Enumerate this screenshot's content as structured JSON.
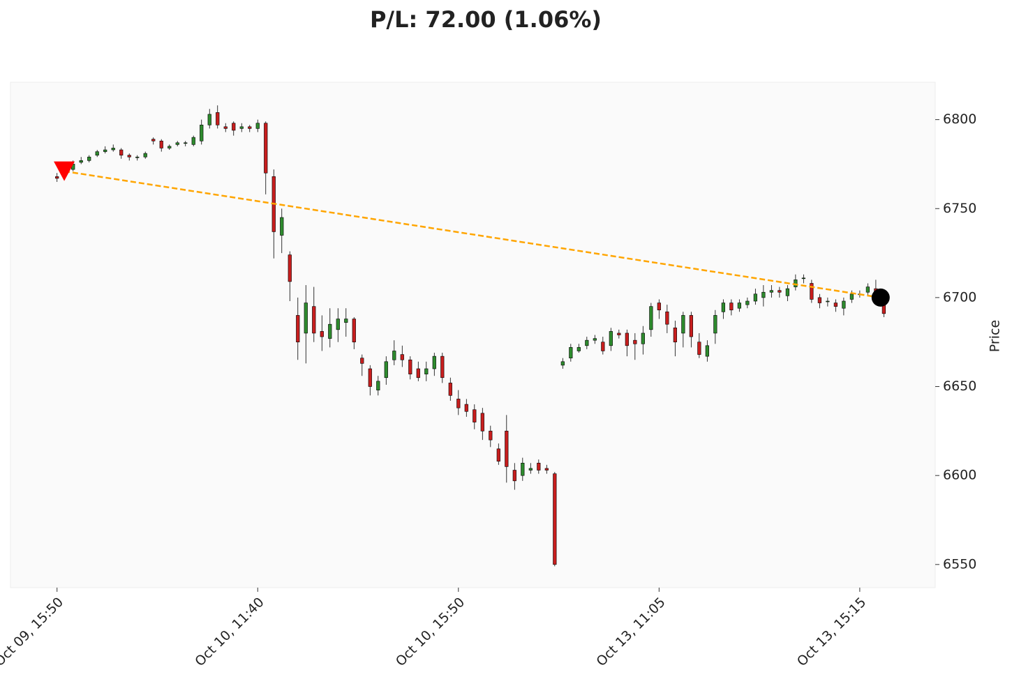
{
  "chart_data": {
    "type": "candlestick",
    "title": "P/L: 72.00 (1.06%)",
    "y_label": "Price",
    "open": [
      6768,
      6769,
      6772,
      6776,
      6777,
      6780,
      6782,
      6783,
      6783,
      6780,
      6779,
      6779,
      6789,
      6788,
      6784,
      6786,
      6787,
      6786,
      6788,
      6797,
      6804,
      6796,
      6798,
      6795,
      6796,
      6795,
      6798,
      6768,
      6735,
      6724,
      6690,
      6680,
      6695,
      6681,
      6677,
      6682,
      6686,
      6688,
      6666,
      6660,
      6648,
      6655,
      6665,
      6668,
      6665,
      6660,
      6657,
      6660,
      6667,
      6652,
      6643,
      6640,
      6637,
      6635,
      6625,
      6615,
      6625,
      6603,
      6600,
      6603,
      6607,
      6604,
      6601,
      6662,
      6666,
      6670,
      6673,
      6676,
      6675,
      6673,
      6680,
      6680,
      6676,
      6674,
      6682,
      6697,
      6692,
      6683,
      6680,
      6690,
      6675,
      6667,
      6680,
      6692,
      6697,
      6694,
      6696,
      6698,
      6700,
      6703,
      6704,
      6701,
      6706,
      6711,
      6708,
      6700,
      6698,
      6697,
      6694,
      6699,
      6702,
      6703,
      6705,
      6697
    ],
    "high": [
      6770,
      6773,
      6777,
      6779,
      6780,
      6783,
      6785,
      6786,
      6784,
      6781,
      6780,
      6782,
      6790,
      6789,
      6786,
      6788,
      6788,
      6791,
      6800,
      6806,
      6808,
      6798,
      6799,
      6798,
      6797,
      6800,
      6799,
      6772,
      6750,
      6726,
      6700,
      6707,
      6706,
      6690,
      6694,
      6694,
      6694,
      6689,
      6668,
      6662,
      6656,
      6667,
      6676,
      6673,
      6667,
      6664,
      6664,
      6669,
      6669,
      6655,
      6648,
      6643,
      6640,
      6638,
      6628,
      6618,
      6634,
      6607,
      6610,
      6607,
      6609,
      6606,
      6602,
      6666,
      6674,
      6674,
      6678,
      6679,
      6678,
      6683,
      6682,
      6682,
      6680,
      6684,
      6697,
      6699,
      6696,
      6687,
      6692,
      6692,
      6680,
      6676,
      6693,
      6699,
      6699,
      6699,
      6700,
      6705,
      6707,
      6707,
      6706,
      6707,
      6713,
      6713,
      6710,
      6702,
      6700,
      6699,
      6700,
      6704,
      6704,
      6708,
      6710,
      6698
    ],
    "low": [
      6765,
      6768,
      6771,
      6775,
      6776,
      6779,
      6781,
      6782,
      6778,
      6777,
      6777,
      6778,
      6786,
      6782,
      6783,
      6785,
      6785,
      6785,
      6786,
      6795,
      6795,
      6793,
      6791,
      6793,
      6793,
      6793,
      6758,
      6722,
      6725,
      6698,
      6665,
      6663,
      6675,
      6670,
      6672,
      6675,
      6678,
      6671,
      6656,
      6645,
      6645,
      6651,
      6662,
      6661,
      6654,
      6653,
      6653,
      6656,
      6652,
      6642,
      6634,
      6633,
      6626,
      6620,
      6616,
      6606,
      6596,
      6592,
      6597,
      6601,
      6601,
      6601,
      6549,
      6660,
      6664,
      6669,
      6671,
      6674,
      6668,
      6670,
      6677,
      6667,
      6665,
      6668,
      6678,
      6688,
      6680,
      6667,
      6672,
      6672,
      6666,
      6664,
      6674,
      6688,
      6690,
      6692,
      6694,
      6696,
      6695,
      6700,
      6700,
      6698,
      6704,
      6708,
      6697,
      6694,
      6695,
      6692,
      6690,
      6697,
      6700,
      6701,
      6697,
      6689
    ],
    "close": [
      6767,
      6771,
      6775,
      6777,
      6779,
      6782,
      6783,
      6784,
      6780,
      6779,
      6779,
      6781,
      6788,
      6784,
      6785,
      6787,
      6787,
      6790,
      6797,
      6803,
      6797,
      6795,
      6794,
      6796,
      6795,
      6798,
      6770,
      6737,
      6745,
      6709,
      6675,
      6697,
      6680,
      6678,
      6685,
      6688,
      6688,
      6675,
      6663,
      6650,
      6653,
      6664,
      6670,
      6665,
      6657,
      6655,
      6660,
      6667,
      6655,
      6645,
      6638,
      6636,
      6630,
      6625,
      6620,
      6608,
      6605,
      6597,
      6607,
      6604,
      6603,
      6603,
      6550,
      6664,
      6672,
      6672,
      6676,
      6677,
      6670,
      6681,
      6679,
      6673,
      6674,
      6680,
      6695,
      6693,
      6685,
      6675,
      6690,
      6678,
      6668,
      6673,
      6690,
      6697,
      6693,
      6697,
      6698,
      6702,
      6703,
      6704,
      6703,
      6705,
      6710,
      6711,
      6699,
      6697,
      6698,
      6695,
      6698,
      6702,
      6702,
      6706,
      6699,
      6691
    ],
    "up_color": "#2e8b2e",
    "down_color": "#c81e1e",
    "xlim": [
      -5.8,
      109.4
    ],
    "xticks": [
      {
        "value": 0,
        "label": "Oct 09, 15:50"
      },
      {
        "value": 25,
        "label": "Oct 10, 11:40"
      },
      {
        "value": 50,
        "label": "Oct 10, 15:50"
      },
      {
        "value": 75,
        "label": "Oct 13, 11:05"
      },
      {
        "value": 100,
        "label": "Oct 13, 15:15"
      }
    ],
    "ylim": [
      6537,
      6821
    ],
    "yticks": [
      6550,
      6600,
      6650,
      6700,
      6750,
      6800
    ],
    "entry": {
      "x": 0.9,
      "y": 6771,
      "color": "#ff0000"
    },
    "exit": {
      "x": 102.6,
      "y": 6700,
      "color": "#000000"
    },
    "line_color": "#ffa500"
  }
}
